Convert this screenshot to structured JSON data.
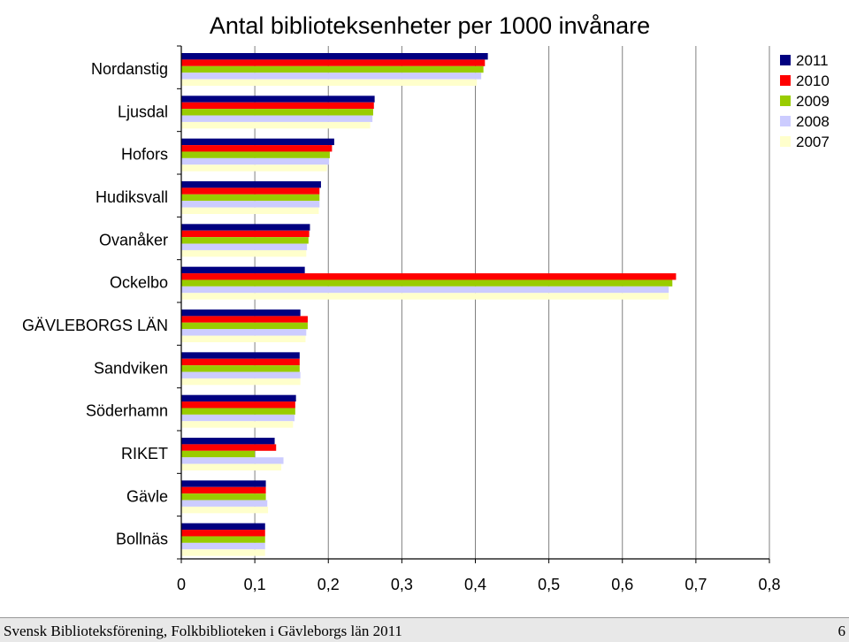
{
  "slide": {
    "footer_text": "Svensk Biblioteksförening, Folkbiblioteken i Gävleborgs län 2011",
    "page_number": "6"
  },
  "chart_data": {
    "type": "bar",
    "orientation": "horizontal",
    "title": "Antal biblioteksenheter per 1000 invånare",
    "xlabel": "",
    "ylabel": "",
    "xlim": [
      0,
      0.8
    ],
    "x_ticks": [
      "0",
      "0,1",
      "0,2",
      "0,3",
      "0,4",
      "0,5",
      "0,6",
      "0,7",
      "0,8"
    ],
    "grid": "vertical",
    "legend_position": "top-right",
    "categories": [
      "Nordanstig",
      "Ljusdal",
      "Hofors",
      "Hudiksvall",
      "Ovanåker",
      "Ockelbo",
      "GÄVLEBORGS LÄN",
      "Sandviken",
      "Söderhamn",
      "RIKET",
      "Gävle",
      "Bollnäs"
    ],
    "series": [
      {
        "name": "2011",
        "color": "#000080",
        "values": [
          0.417,
          0.263,
          0.208,
          0.19,
          0.175,
          0.168,
          0.162,
          0.161,
          0.156,
          0.127,
          0.115,
          0.114
        ]
      },
      {
        "name": "2010",
        "color": "#ff0000",
        "values": [
          0.413,
          0.262,
          0.205,
          0.188,
          0.174,
          0.673,
          0.172,
          0.161,
          0.155,
          0.129,
          0.115,
          0.114
        ]
      },
      {
        "name": "2009",
        "color": "#99cc00",
        "values": [
          0.411,
          0.261,
          0.202,
          0.188,
          0.173,
          0.668,
          0.172,
          0.161,
          0.155,
          0.1,
          0.115,
          0.114
        ]
      },
      {
        "name": "2008",
        "color": "#ccccff",
        "values": [
          0.408,
          0.26,
          0.201,
          0.188,
          0.171,
          0.663,
          0.17,
          0.162,
          0.154,
          0.139,
          0.117,
          0.114
        ]
      },
      {
        "name": "2007",
        "color": "#ffffcc",
        "values": [
          0.402,
          0.257,
          0.198,
          0.187,
          0.17,
          0.663,
          0.169,
          0.162,
          0.152,
          0.136,
          0.118,
          0.114
        ]
      }
    ]
  }
}
